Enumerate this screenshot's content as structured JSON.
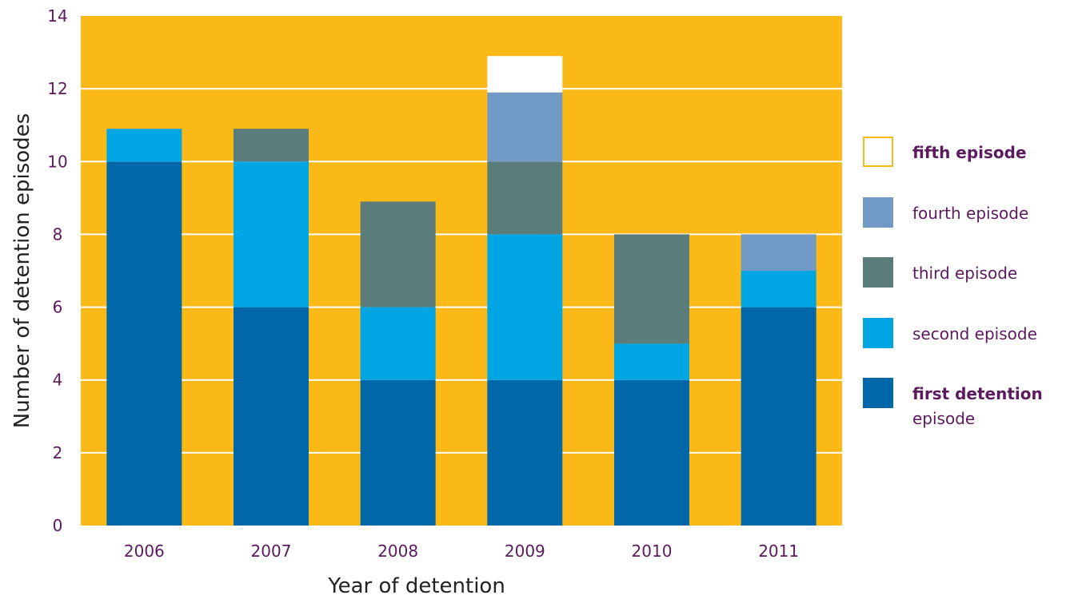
{
  "chart_data": {
    "type": "bar",
    "stacked": true,
    "categories": [
      "2006",
      "2007",
      "2008",
      "2009",
      "2010",
      "2011"
    ],
    "series": [
      {
        "name": "first detention episode",
        "color": "#0068A8",
        "values": [
          10,
          6,
          4,
          4,
          4,
          6
        ]
      },
      {
        "name": "second episode",
        "color": "#00A5E3",
        "values": [
          0.9,
          4,
          2,
          4,
          1,
          1
        ]
      },
      {
        "name": "third episode",
        "color": "#5A7C7A",
        "values": [
          0,
          0.9,
          2.9,
          2,
          3,
          0
        ]
      },
      {
        "name": "fourth episode",
        "color": "#7199C6",
        "values": [
          0,
          0,
          0,
          1.9,
          0,
          1
        ]
      },
      {
        "name": "fifth episode",
        "color": "#FFFFFF",
        "values": [
          0,
          0,
          0,
          1,
          0,
          0
        ]
      }
    ],
    "xlabel": "Year of detention",
    "ylabel": "Number of detention episodes",
    "ylim": [
      0,
      14
    ],
    "yticks": [
      "0",
      "2",
      "4",
      "6",
      "8",
      "10",
      "12",
      "14"
    ],
    "grid": true,
    "legend_position": "right",
    "legend": [
      {
        "label_bold": "fifth episode",
        "label_rest": "",
        "color": "#FFFFFF",
        "border": "#FBB917"
      },
      {
        "label_bold": "",
        "label_rest": "fourth episode",
        "color": "#7199C6",
        "border": ""
      },
      {
        "label_bold": "",
        "label_rest": "third episode",
        "color": "#5A7C7A",
        "border": ""
      },
      {
        "label_bold": "",
        "label_rest": "second episode",
        "color": "#00A5E3",
        "border": ""
      },
      {
        "label_bold": "first detention",
        "label_rest": "episode",
        "color": "#0068A8",
        "border": ""
      }
    ],
    "colors": {
      "plot_background": "#FBB917",
      "gridline": "#FFFFFF",
      "tick_text": "#5B1A5E",
      "axis_title": "#222222",
      "legend_text": "#5B1A5E"
    }
  }
}
